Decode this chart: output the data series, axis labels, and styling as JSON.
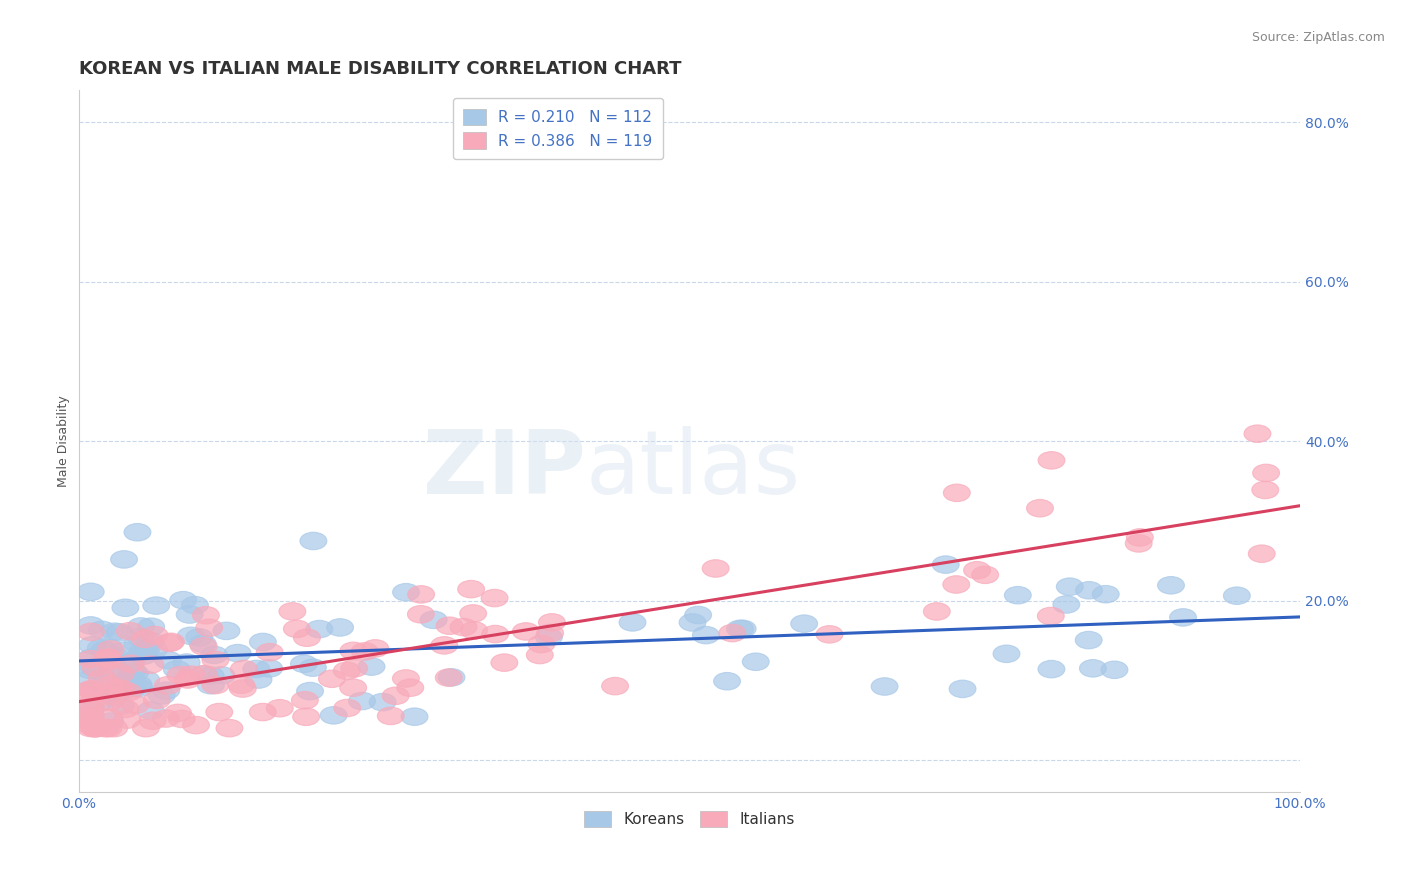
{
  "title": "KOREAN VS ITALIAN MALE DISABILITY CORRELATION CHART",
  "source": "Source: ZipAtlas.com",
  "ylabel": "Male Disability",
  "xlim": [
    0.0,
    1.0
  ],
  "ylim": [
    -0.04,
    0.84
  ],
  "x_ticks": [
    0.0,
    0.2,
    0.4,
    0.6,
    0.8,
    1.0
  ],
  "x_tick_labels": [
    "0.0%",
    "",
    "",
    "",
    "",
    "100.0%"
  ],
  "y_ticks": [
    0.0,
    0.2,
    0.4,
    0.6,
    0.8
  ],
  "y_tick_labels": [
    "",
    "20.0%",
    "40.0%",
    "60.0%",
    "80.0%"
  ],
  "korean_R": 0.21,
  "korean_N": 112,
  "italian_R": 0.386,
  "italian_N": 119,
  "korean_color": "#a8c8e8",
  "italian_color": "#f8aaba",
  "korean_line_color": "#3060c0",
  "italian_line_color": "#d84060",
  "background_color": "#ffffff",
  "grid_color": "#c8d8e8",
  "legend_korean": "Koreans",
  "legend_italian": "Italians",
  "title_fontsize": 13,
  "axis_label_fontsize": 9,
  "tick_fontsize": 10,
  "label_color": "#4472c4",
  "title_color": "#333333",
  "source_color": "#888888"
}
